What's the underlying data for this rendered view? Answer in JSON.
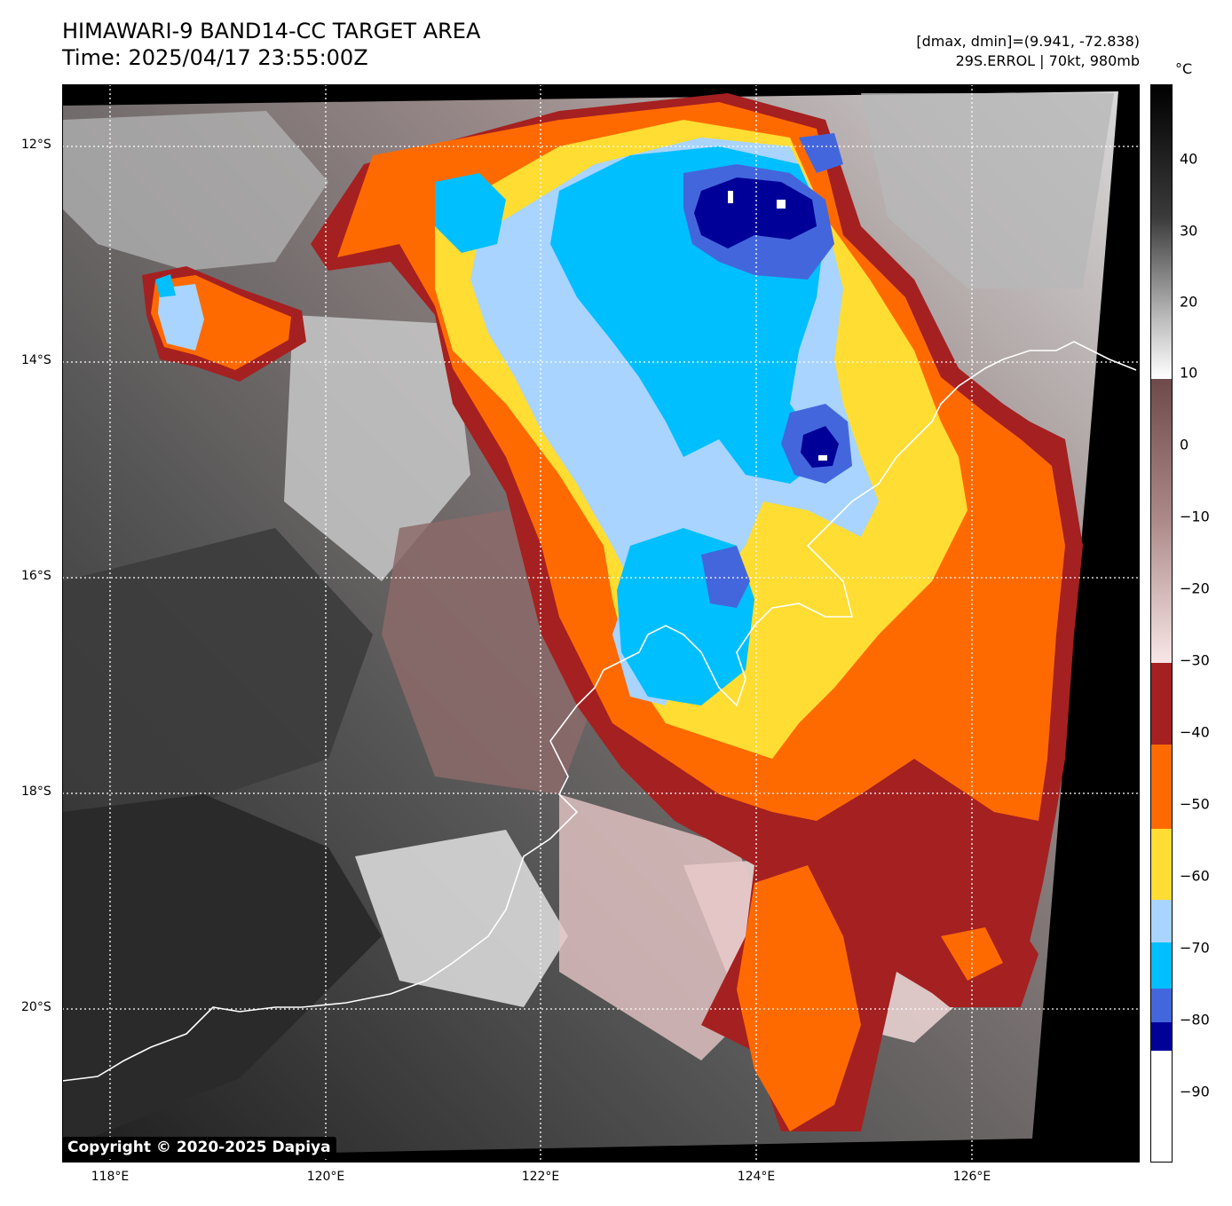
{
  "header": {
    "title_line1": "HIMAWARI-9 BAND14-CC TARGET AREA",
    "title_line2": "Time: 2025/04/17 23:55:00Z",
    "dmax_dmin": "[dmax, dmin]=(9.941, -72.838)",
    "storm_info": "29S.ERROL | 70kt, 980mb"
  },
  "map": {
    "latitude_labels": [
      "12°S",
      "14°S",
      "16°S",
      "18°S",
      "20°S"
    ],
    "longitude_labels": [
      "118°E",
      "120°E",
      "122°E",
      "124°E",
      "126°E"
    ],
    "copyright": "Copyright © 2020-2025 Dapiya",
    "cloud_top_colors": {
      "warm_dark": "#2b2b2b",
      "warm_mid": "#9a9a9a",
      "warm_light": "#e6e6e6",
      "mauve": "#8c6a6a",
      "pink": "#e6c6c6",
      "dark_red": "#a52020",
      "orange": "#ff6a00",
      "yellow": "#ffdd33",
      "light_blue": "#a8d4ff",
      "cyan": "#00bfff",
      "royal_blue": "#4466dd",
      "navy": "#000099",
      "white_core": "#ffffff",
      "coastline": "#ffffff",
      "gridline": "#ffffff"
    }
  },
  "colorbar": {
    "unit": "°C",
    "tick_labels": [
      "40",
      "30",
      "20",
      "10",
      "0",
      "−10",
      "−20",
      "−30",
      "−40",
      "−50",
      "−60",
      "−70",
      "−80",
      "−90"
    ]
  }
}
